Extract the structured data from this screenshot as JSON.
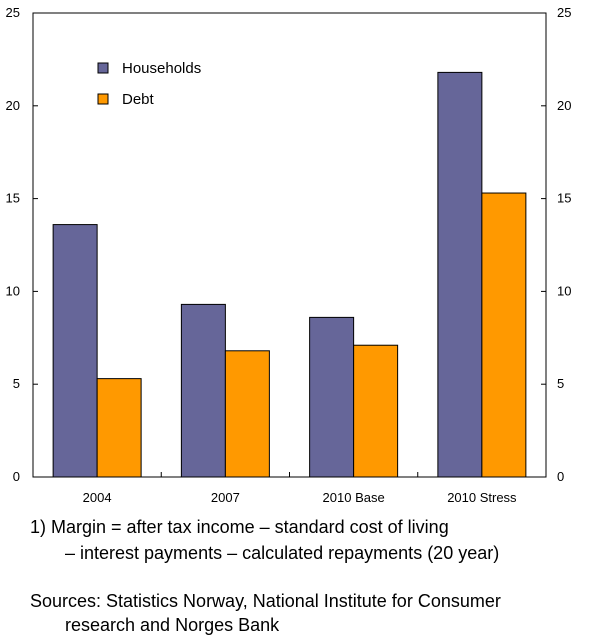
{
  "chart_data": {
    "type": "bar",
    "categories": [
      "2004",
      "2007",
      "2010 Base",
      "2010 Stress"
    ],
    "series": [
      {
        "name": "Households",
        "values": [
          13.6,
          9.3,
          8.6,
          21.8
        ],
        "color": "#666699"
      },
      {
        "name": "Debt",
        "values": [
          5.3,
          6.8,
          7.1,
          15.3
        ],
        "color": "#FF9900"
      }
    ],
    "ylim": [
      0,
      25
    ],
    "yticks": [
      0,
      5,
      10,
      15,
      20,
      25
    ],
    "secondary_yticks": [
      0,
      5,
      10,
      15,
      20,
      25
    ],
    "legend_position": "top-left",
    "grid": false
  },
  "footnote": {
    "line1": "1) Margin = after tax income  –  standard cost of living",
    "line2": "– interest payments – calculated repayments (20 year)"
  },
  "sources": {
    "line1": "Sources: Statistics Norway, National Institute for Consumer",
    "line2": "research and Norges Bank"
  }
}
